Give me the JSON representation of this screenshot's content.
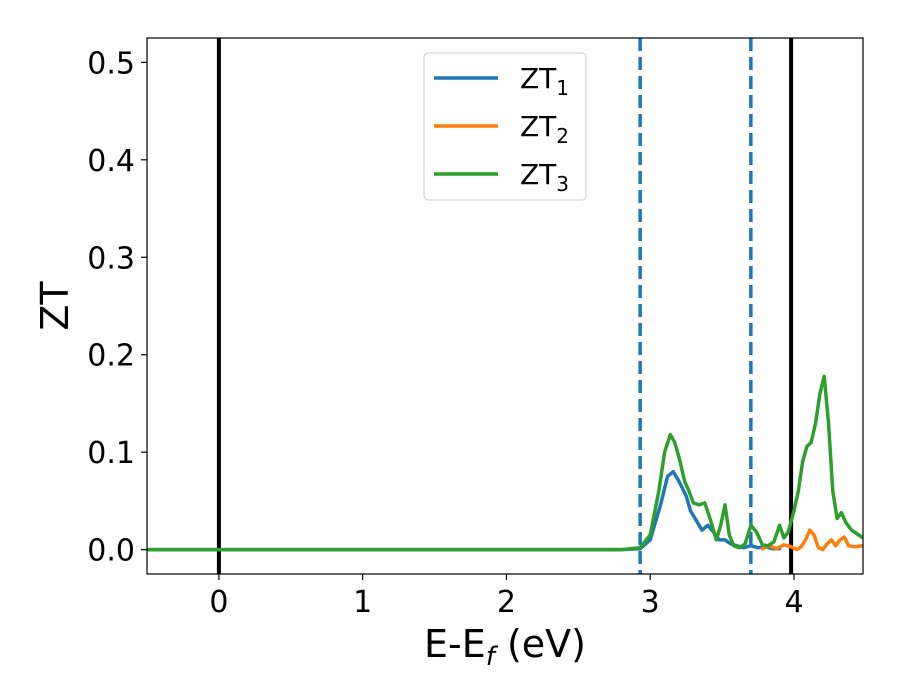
{
  "chart_data": {
    "type": "line",
    "title": "",
    "xlabel": {
      "main": "E-E",
      "sub": "f",
      "suffix": " (eV)"
    },
    "ylabel": "ZT",
    "xlim": [
      -0.5,
      4.48
    ],
    "ylim": [
      -0.025,
      0.525
    ],
    "xticks": [
      0,
      1,
      2,
      3,
      4
    ],
    "yticks": [
      0.0,
      0.1,
      0.2,
      0.3,
      0.4,
      0.5
    ],
    "ytick_labels": [
      "0.0",
      "0.1",
      "0.2",
      "0.3",
      "0.4",
      "0.5"
    ],
    "grid": false,
    "legend_position": "top-center",
    "vlines": [
      {
        "x": 0.0,
        "style": "solid",
        "color": "#000000"
      },
      {
        "x": 2.93,
        "style": "dashed",
        "color": "#1f77b4"
      },
      {
        "x": 3.7,
        "style": "dashed",
        "color": "#1f77b4"
      },
      {
        "x": 3.98,
        "style": "solid",
        "color": "#000000"
      }
    ],
    "series": [
      {
        "name": "ZT",
        "subscript": "1",
        "color": "#1f77b4",
        "x": [
          -0.5,
          2.8,
          2.93,
          3.0,
          3.07,
          3.12,
          3.16,
          3.2,
          3.25,
          3.28,
          3.32,
          3.36,
          3.4,
          3.44,
          3.48,
          3.52,
          3.56,
          3.6,
          3.65,
          3.7,
          3.75,
          3.8,
          3.85,
          3.9
        ],
        "y": [
          0.0,
          0.0,
          0.001,
          0.01,
          0.045,
          0.075,
          0.08,
          0.07,
          0.055,
          0.04,
          0.03,
          0.02,
          0.025,
          0.018,
          0.01,
          0.01,
          0.006,
          0.004,
          0.002,
          0.004,
          0.002,
          0.003,
          0.001,
          0.001
        ]
      },
      {
        "name": "ZT",
        "subscript": "2",
        "color": "#ff7f0e",
        "x": [
          3.78,
          3.83,
          3.88,
          3.93,
          3.98,
          4.02,
          4.05,
          4.08,
          4.11,
          4.14,
          4.17,
          4.2,
          4.23,
          4.26,
          4.29,
          4.32,
          4.35,
          4.38,
          4.42,
          4.48
        ],
        "y": [
          0.001,
          0.004,
          0.001,
          0.005,
          0.003,
          0.0,
          0.003,
          0.01,
          0.02,
          0.015,
          0.002,
          0.0,
          0.006,
          0.01,
          0.004,
          0.01,
          0.013,
          0.004,
          0.003,
          0.004
        ]
      },
      {
        "name": "ZT",
        "subscript": "3",
        "color": "#2ca02c",
        "x": [
          -0.5,
          2.8,
          2.93,
          3.0,
          3.06,
          3.1,
          3.14,
          3.17,
          3.2,
          3.24,
          3.27,
          3.3,
          3.34,
          3.38,
          3.42,
          3.46,
          3.49,
          3.52,
          3.55,
          3.58,
          3.62,
          3.66,
          3.7,
          3.74,
          3.78,
          3.82,
          3.86,
          3.9,
          3.93,
          3.96,
          4.0,
          4.03,
          4.06,
          4.09,
          4.12,
          4.15,
          4.18,
          4.21,
          4.24,
          4.27,
          4.3,
          4.33,
          4.36,
          4.4,
          4.44,
          4.48
        ],
        "y": [
          0.0,
          0.0,
          0.002,
          0.015,
          0.06,
          0.1,
          0.118,
          0.11,
          0.095,
          0.07,
          0.06,
          0.048,
          0.046,
          0.048,
          0.03,
          0.01,
          0.025,
          0.046,
          0.015,
          0.004,
          0.002,
          0.006,
          0.025,
          0.018,
          0.005,
          0.004,
          0.008,
          0.025,
          0.012,
          0.018,
          0.04,
          0.06,
          0.09,
          0.106,
          0.11,
          0.13,
          0.16,
          0.178,
          0.13,
          0.06,
          0.032,
          0.038,
          0.028,
          0.02,
          0.016,
          0.012
        ]
      }
    ]
  }
}
